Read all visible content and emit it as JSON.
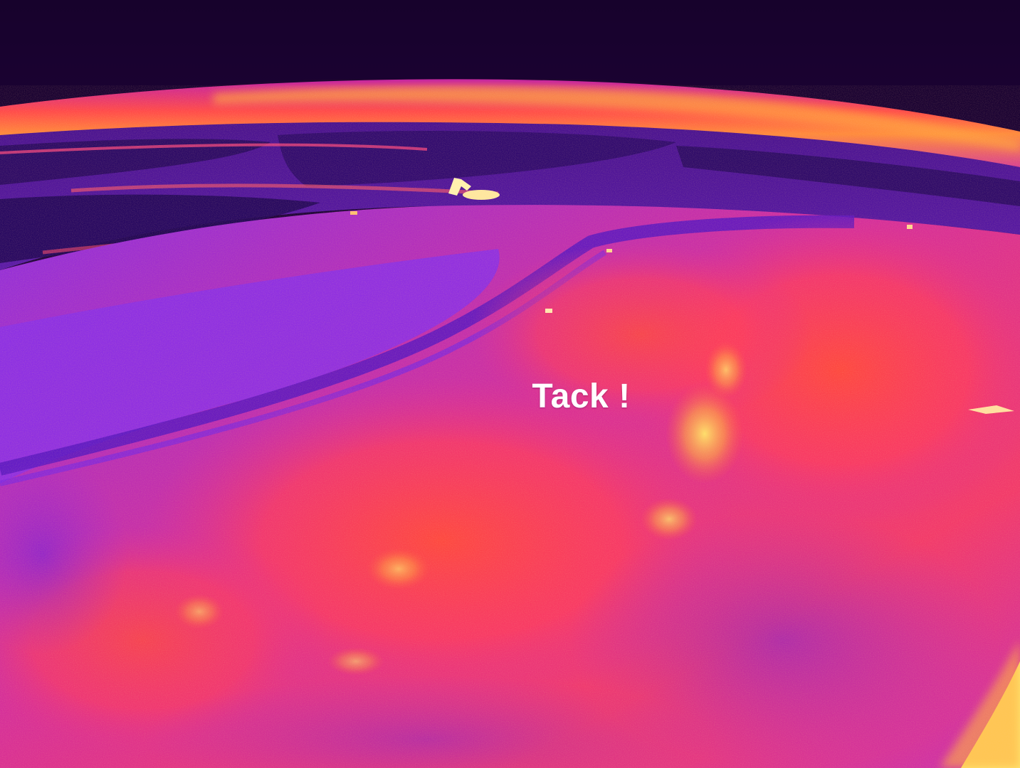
{
  "caption": {
    "text": "Tack !"
  },
  "palette": {
    "sky": "#2c0650",
    "sky_top": "#1a0333",
    "horizon_glow": "#ff5a3c",
    "horizon_hot": "#ffb347",
    "field_dark": "#3a0f7a",
    "field_purple": "#8a2be2",
    "field_magenta": "#e0308a",
    "field_red": "#ff3c4e",
    "hot_yellow": "#ffe066",
    "text": "#ffffff"
  }
}
